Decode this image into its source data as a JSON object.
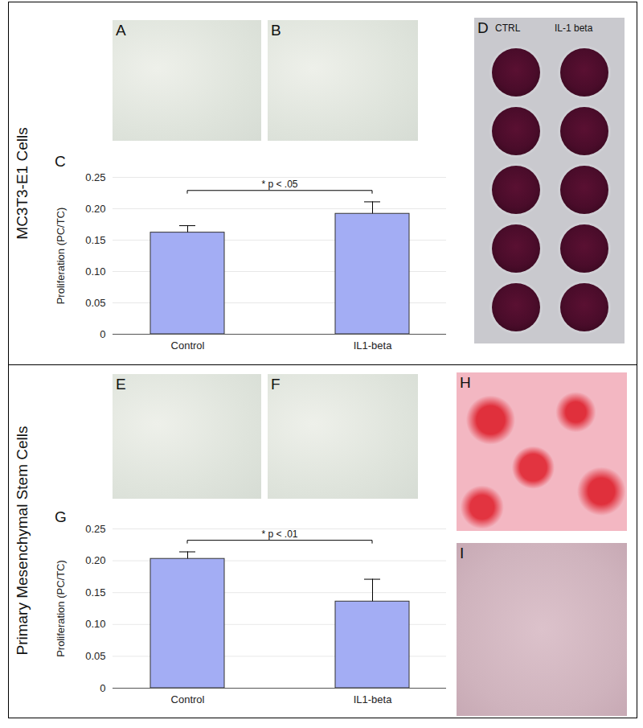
{
  "figure": {
    "sections": [
      {
        "label": "MC3T3-E1 Cells",
        "photos": [
          "A",
          "B",
          "D"
        ],
        "well_labels": [
          "CTRL",
          "IL-1 beta"
        ]
      },
      {
        "label": "Primary Mesenchymal Stem Cells",
        "photos": [
          "E",
          "F",
          "H",
          "I"
        ]
      }
    ]
  },
  "chart_data": [
    {
      "type": "bar",
      "title": "C",
      "categories": [
        "Control",
        "IL1-beta"
      ],
      "values": [
        0.162,
        0.192
      ],
      "errors": [
        0.011,
        0.019
      ],
      "color": "#a3adf4",
      "ylabel": "Proliferation (PC/TC)",
      "ylim": [
        0,
        0.25
      ],
      "yticks": [
        0,
        0.05,
        {
          "value": 0.1,
          "label": "0.10"
        },
        0.15,
        {
          "value": 0.2,
          "label": "0.20"
        },
        0.25
      ],
      "grid": true,
      "annotation": "* p < .05"
    },
    {
      "type": "bar",
      "title": "G",
      "categories": [
        "Control",
        "IL1-beta"
      ],
      "values": [
        0.203,
        0.136
      ],
      "errors": [
        0.011,
        0.035
      ],
      "color": "#a3adf4",
      "ylabel": "Proliferation (PC/TC)",
      "ylim": [
        0,
        0.25
      ],
      "yticks": [
        0,
        0.05,
        {
          "value": 0.1,
          "label": "0.10"
        },
        0.15,
        {
          "value": 0.2,
          "label": "0.20"
        },
        0.25
      ],
      "grid": true,
      "annotation": "* p < .01"
    }
  ]
}
